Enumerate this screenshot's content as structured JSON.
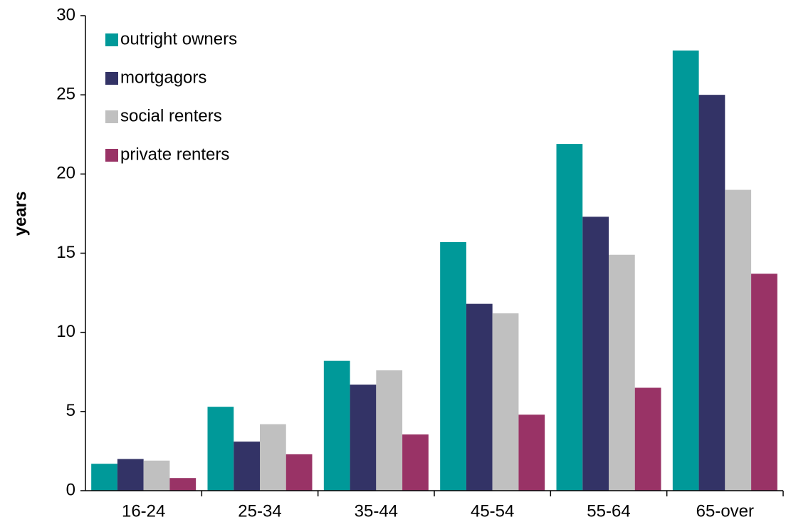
{
  "chart_data": {
    "type": "bar",
    "y_label": "years",
    "categories": [
      "16-24",
      "25-34",
      "35-44",
      "45-54",
      "55-64",
      "65-over"
    ],
    "series": [
      {
        "name": "outright owners",
        "color": "#009999",
        "values": [
          1.7,
          5.3,
          8.2,
          15.7,
          21.9,
          27.8
        ]
      },
      {
        "name": "mortgagors",
        "color": "#333366",
        "values": [
          2.0,
          3.1,
          6.7,
          11.8,
          17.3,
          25.0
        ]
      },
      {
        "name": "social renters",
        "color": "#c0c0c0",
        "values": [
          1.9,
          4.2,
          7.6,
          11.2,
          14.9,
          19.0
        ]
      },
      {
        "name": "private renters",
        "color": "#993366",
        "values": [
          0.8,
          2.3,
          3.55,
          4.8,
          6.5,
          13.7
        ]
      }
    ],
    "ylim": [
      0,
      30
    ],
    "yticks": [
      0,
      5,
      10,
      15,
      20,
      25,
      30
    ],
    "grid": false,
    "legend": "upper left"
  }
}
